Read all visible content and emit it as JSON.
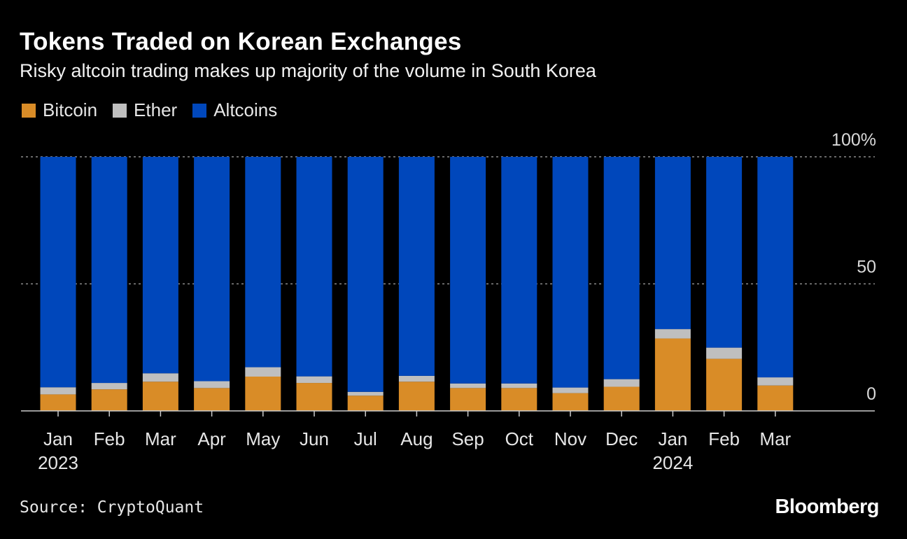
{
  "chart_data": {
    "type": "bar",
    "stacked": true,
    "title": "Tokens Traded on Korean Exchanges",
    "subtitle": "Risky altcoin trading makes up majority of the volume in South Korea",
    "categories": [
      "Jan",
      "Feb",
      "Mar",
      "Apr",
      "May",
      "Jun",
      "Jul",
      "Aug",
      "Sep",
      "Oct",
      "Nov",
      "Dec",
      "Jan",
      "Feb",
      "Mar"
    ],
    "year_labels": [
      "2023",
      "",
      "",
      "",
      "",
      "",
      "",
      "",
      "",
      "",
      "",
      "",
      "2024",
      "",
      ""
    ],
    "series": [
      {
        "name": "Bitcoin",
        "color": "#d98c27",
        "values": [
          6.5,
          8.5,
          11.5,
          9,
          13.5,
          11,
          6,
          11.5,
          9,
          9,
          7,
          9.5,
          28.5,
          20.5,
          10
        ]
      },
      {
        "name": "Ether",
        "color": "#bfbfbf",
        "values": [
          2.8,
          2.5,
          3.3,
          2.7,
          3.7,
          2.6,
          1.5,
          2.3,
          1.8,
          1.8,
          2.2,
          3.0,
          3.7,
          4.4,
          3.2
        ]
      },
      {
        "name": "Altcoins",
        "color": "#0047bb",
        "values": [
          90.7,
          89,
          85.2,
          88.3,
          82.8,
          86.4,
          92.5,
          86.2,
          89.2,
          89.2,
          90.8,
          87.5,
          67.8,
          75.1,
          86.8
        ]
      }
    ],
    "yticks": [
      "100%",
      "50",
      "0"
    ],
    "ytick_values": [
      100,
      50,
      0
    ],
    "ylim": [
      0,
      100
    ],
    "xlabel": "",
    "ylabel": "",
    "legend_position": "top-left",
    "grid": true
  },
  "source": "Source: CryptoQuant",
  "brand": "Bloomberg"
}
